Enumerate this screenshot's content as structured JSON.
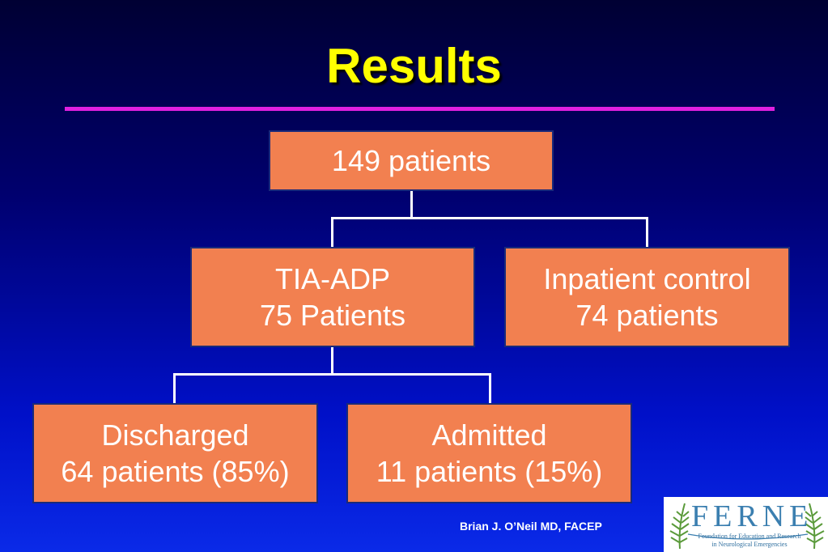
{
  "slide": {
    "title": "Results",
    "author": "Brian J. O’Neil MD, FACEP"
  },
  "flow": {
    "root": {
      "line1": "149 patients"
    },
    "tia": {
      "line1": "TIA-ADP",
      "line2": "75 Patients"
    },
    "inpatient": {
      "line1": "Inpatient control",
      "line2": "74 patients"
    },
    "discharged": {
      "line1": "Discharged",
      "line2": "64 patients (85%)"
    },
    "admitted": {
      "line1": "Admitted",
      "line2": "11 patients (15%)"
    }
  },
  "logo": {
    "word": "FERNE",
    "tagline_1": "Foundation for Education and Research",
    "tagline_2": "in Neurological Emergencies"
  },
  "colors": {
    "title": "#ffff00",
    "rule": "#e020e0",
    "box_fill": "#f28050",
    "box_text": "#ffffff",
    "connector": "#ffffff",
    "logo_accent": "#3b7fb0"
  }
}
